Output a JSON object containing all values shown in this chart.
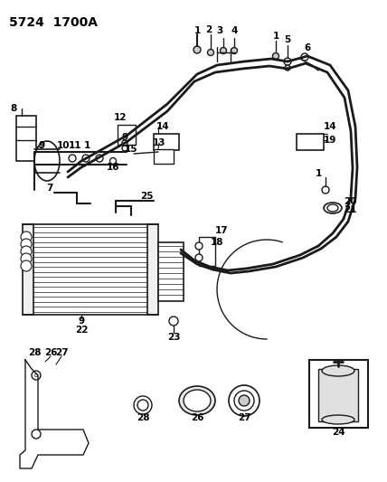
{
  "title": "5724  1700A",
  "bg_color": "#ffffff",
  "line_color": "#1a1a1a",
  "figsize": [
    4.28,
    5.33
  ],
  "dpi": 100,
  "title_fontsize": 10,
  "label_fontsize": 7.5,
  "label_bold": true
}
